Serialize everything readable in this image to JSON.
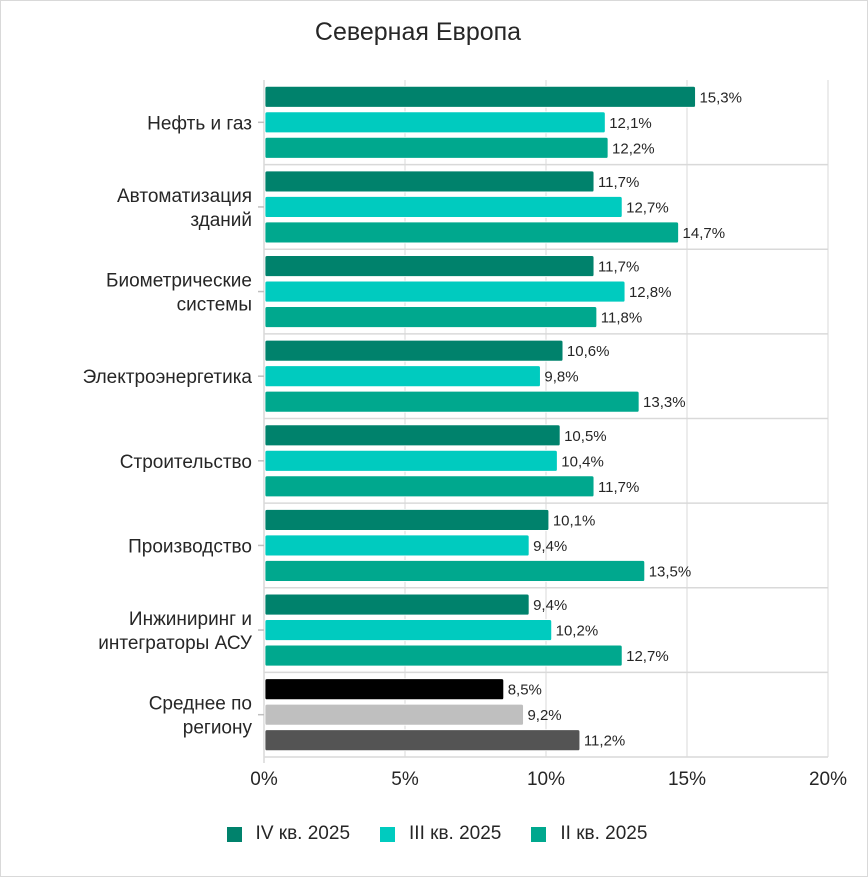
{
  "chart_data": {
    "type": "bar",
    "orientation": "horizontal",
    "title": "Северная Европа",
    "xlabel": "",
    "ylabel": "",
    "xlim": [
      0,
      20
    ],
    "x_ticks": [
      "0%",
      "5%",
      "10%",
      "15%",
      "20%"
    ],
    "x_tick_values": [
      0,
      5,
      10,
      15,
      20
    ],
    "grid": true,
    "legend_position": "bottom",
    "categories": [
      "Нефть и газ",
      "Автоматизация зданий",
      "Биометрические системы",
      "Электроэнергетика",
      "Строительство",
      "Производство",
      "Инжиниринг и интеграторы АСУ",
      "Среднее по региону"
    ],
    "category_lines": [
      [
        "Нефть и газ"
      ],
      [
        "Автоматизация",
        "зданий"
      ],
      [
        "Биометрические",
        "системы"
      ],
      [
        "Электроэнергетика"
      ],
      [
        "Строительство"
      ],
      [
        "Производство"
      ],
      [
        "Инжиниринг и",
        "интеграторы АСУ"
      ],
      [
        "Среднее по",
        "региону"
      ]
    ],
    "series": [
      {
        "name": "IV кв. 2025",
        "color": "#00826c",
        "values": [
          15.3,
          11.7,
          11.7,
          10.6,
          10.5,
          10.1,
          9.4,
          8.5
        ]
      },
      {
        "name": "III кв. 2025",
        "color": "#00cbbf",
        "values": [
          12.1,
          12.7,
          12.8,
          9.8,
          10.4,
          9.4,
          10.2,
          9.2
        ]
      },
      {
        "name": "II кв. 2025",
        "color": "#00a88e",
        "values": [
          12.2,
          14.7,
          11.8,
          13.3,
          11.7,
          13.5,
          12.7,
          11.2
        ]
      }
    ],
    "average_category_colors": [
      "#000000",
      "#bfbfbf",
      "#545454"
    ],
    "value_label_format": "comma-decimal-percent"
  }
}
